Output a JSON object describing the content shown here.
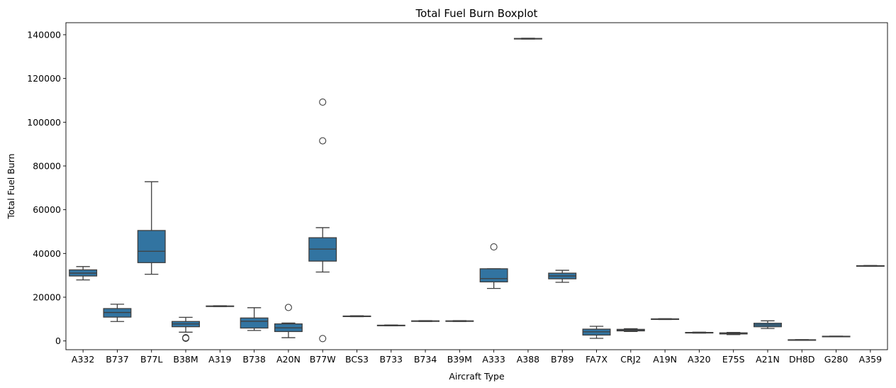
{
  "chart_data": {
    "type": "boxplot",
    "title": "Total Fuel Burn Boxplot",
    "xlabel": "Aircraft Type",
    "ylabel": "Total Fuel Burn",
    "ylim": [
      -4000,
      145500
    ],
    "yticks": [
      0,
      20000,
      40000,
      60000,
      80000,
      100000,
      120000,
      140000
    ],
    "box_color": "#3274a1",
    "line_color": "#3f3f3f",
    "grid": false,
    "categories": [
      "A332",
      "B737",
      "B77L",
      "B38M",
      "A319",
      "B738",
      "A20N",
      "B77W",
      "BCS3",
      "B733",
      "B734",
      "B39M",
      "A333",
      "A388",
      "B789",
      "FA7X",
      "CRJ2",
      "A19N",
      "A320",
      "E75S",
      "A21N",
      "DH8D",
      "G280",
      "A359"
    ],
    "boxes": [
      {
        "min": 27900,
        "q1": 29700,
        "median": 31000,
        "q3": 32500,
        "max": 34000,
        "outliers": []
      },
      {
        "min": 8900,
        "q1": 10900,
        "median": 13000,
        "q3": 14800,
        "max": 16800,
        "outliers": []
      },
      {
        "min": 30500,
        "q1": 35800,
        "median": 41000,
        "q3": 50500,
        "max": 72800,
        "outliers": []
      },
      {
        "min": 4000,
        "q1": 6500,
        "median": 7800,
        "q3": 8900,
        "max": 10800,
        "outliers": [
          1500,
          1200
        ]
      },
      {
        "min": 15700,
        "q1": 15800,
        "median": 15900,
        "q3": 16000,
        "max": 16100,
        "outliers": []
      },
      {
        "min": 4800,
        "q1": 5900,
        "median": 9000,
        "q3": 10500,
        "max": 15200,
        "outliers": []
      },
      {
        "min": 1500,
        "q1": 4300,
        "median": 6000,
        "q3": 7800,
        "max": 8200,
        "outliers": [
          15300
        ]
      },
      {
        "min": 31500,
        "q1": 36500,
        "median": 42000,
        "q3": 47200,
        "max": 51800,
        "outliers": [
          109200,
          91500,
          1100
        ]
      },
      {
        "min": 11100,
        "q1": 11200,
        "median": 11300,
        "q3": 11400,
        "max": 11500,
        "outliers": []
      },
      {
        "min": 6900,
        "q1": 7000,
        "median": 7100,
        "q3": 7200,
        "max": 7300,
        "outliers": []
      },
      {
        "min": 8900,
        "q1": 9000,
        "median": 9100,
        "q3": 9200,
        "max": 9300,
        "outliers": []
      },
      {
        "min": 8900,
        "q1": 9000,
        "median": 9100,
        "q3": 9200,
        "max": 9300,
        "outliers": []
      },
      {
        "min": 24000,
        "q1": 27000,
        "median": 28500,
        "q3": 33000,
        "max": 33000,
        "outliers": [
          43000
        ]
      },
      {
        "min": 138000,
        "q1": 138100,
        "median": 138200,
        "q3": 138300,
        "max": 138400,
        "outliers": []
      },
      {
        "min": 26800,
        "q1": 28400,
        "median": 29700,
        "q3": 31000,
        "max": 32300,
        "outliers": []
      },
      {
        "min": 1200,
        "q1": 2700,
        "median": 4200,
        "q3": 5400,
        "max": 6700,
        "outliers": []
      },
      {
        "min": 4300,
        "q1": 4600,
        "median": 5000,
        "q3": 5300,
        "max": 5600,
        "outliers": []
      },
      {
        "min": 9800,
        "q1": 9900,
        "median": 10000,
        "q3": 10100,
        "max": 10200,
        "outliers": []
      },
      {
        "min": 3600,
        "q1": 3700,
        "median": 3800,
        "q3": 3900,
        "max": 4000,
        "outliers": []
      },
      {
        "min": 2900,
        "q1": 3200,
        "median": 3500,
        "q3": 3700,
        "max": 3900,
        "outliers": []
      },
      {
        "min": 5700,
        "q1": 6500,
        "median": 7300,
        "q3": 8100,
        "max": 9200,
        "outliers": []
      },
      {
        "min": 400,
        "q1": 450,
        "median": 500,
        "q3": 550,
        "max": 600,
        "outliers": []
      },
      {
        "min": 2000,
        "q1": 2050,
        "median": 2100,
        "q3": 2150,
        "max": 2200,
        "outliers": []
      },
      {
        "min": 34100,
        "q1": 34200,
        "median": 34300,
        "q3": 34400,
        "max": 34500,
        "outliers": []
      }
    ]
  }
}
